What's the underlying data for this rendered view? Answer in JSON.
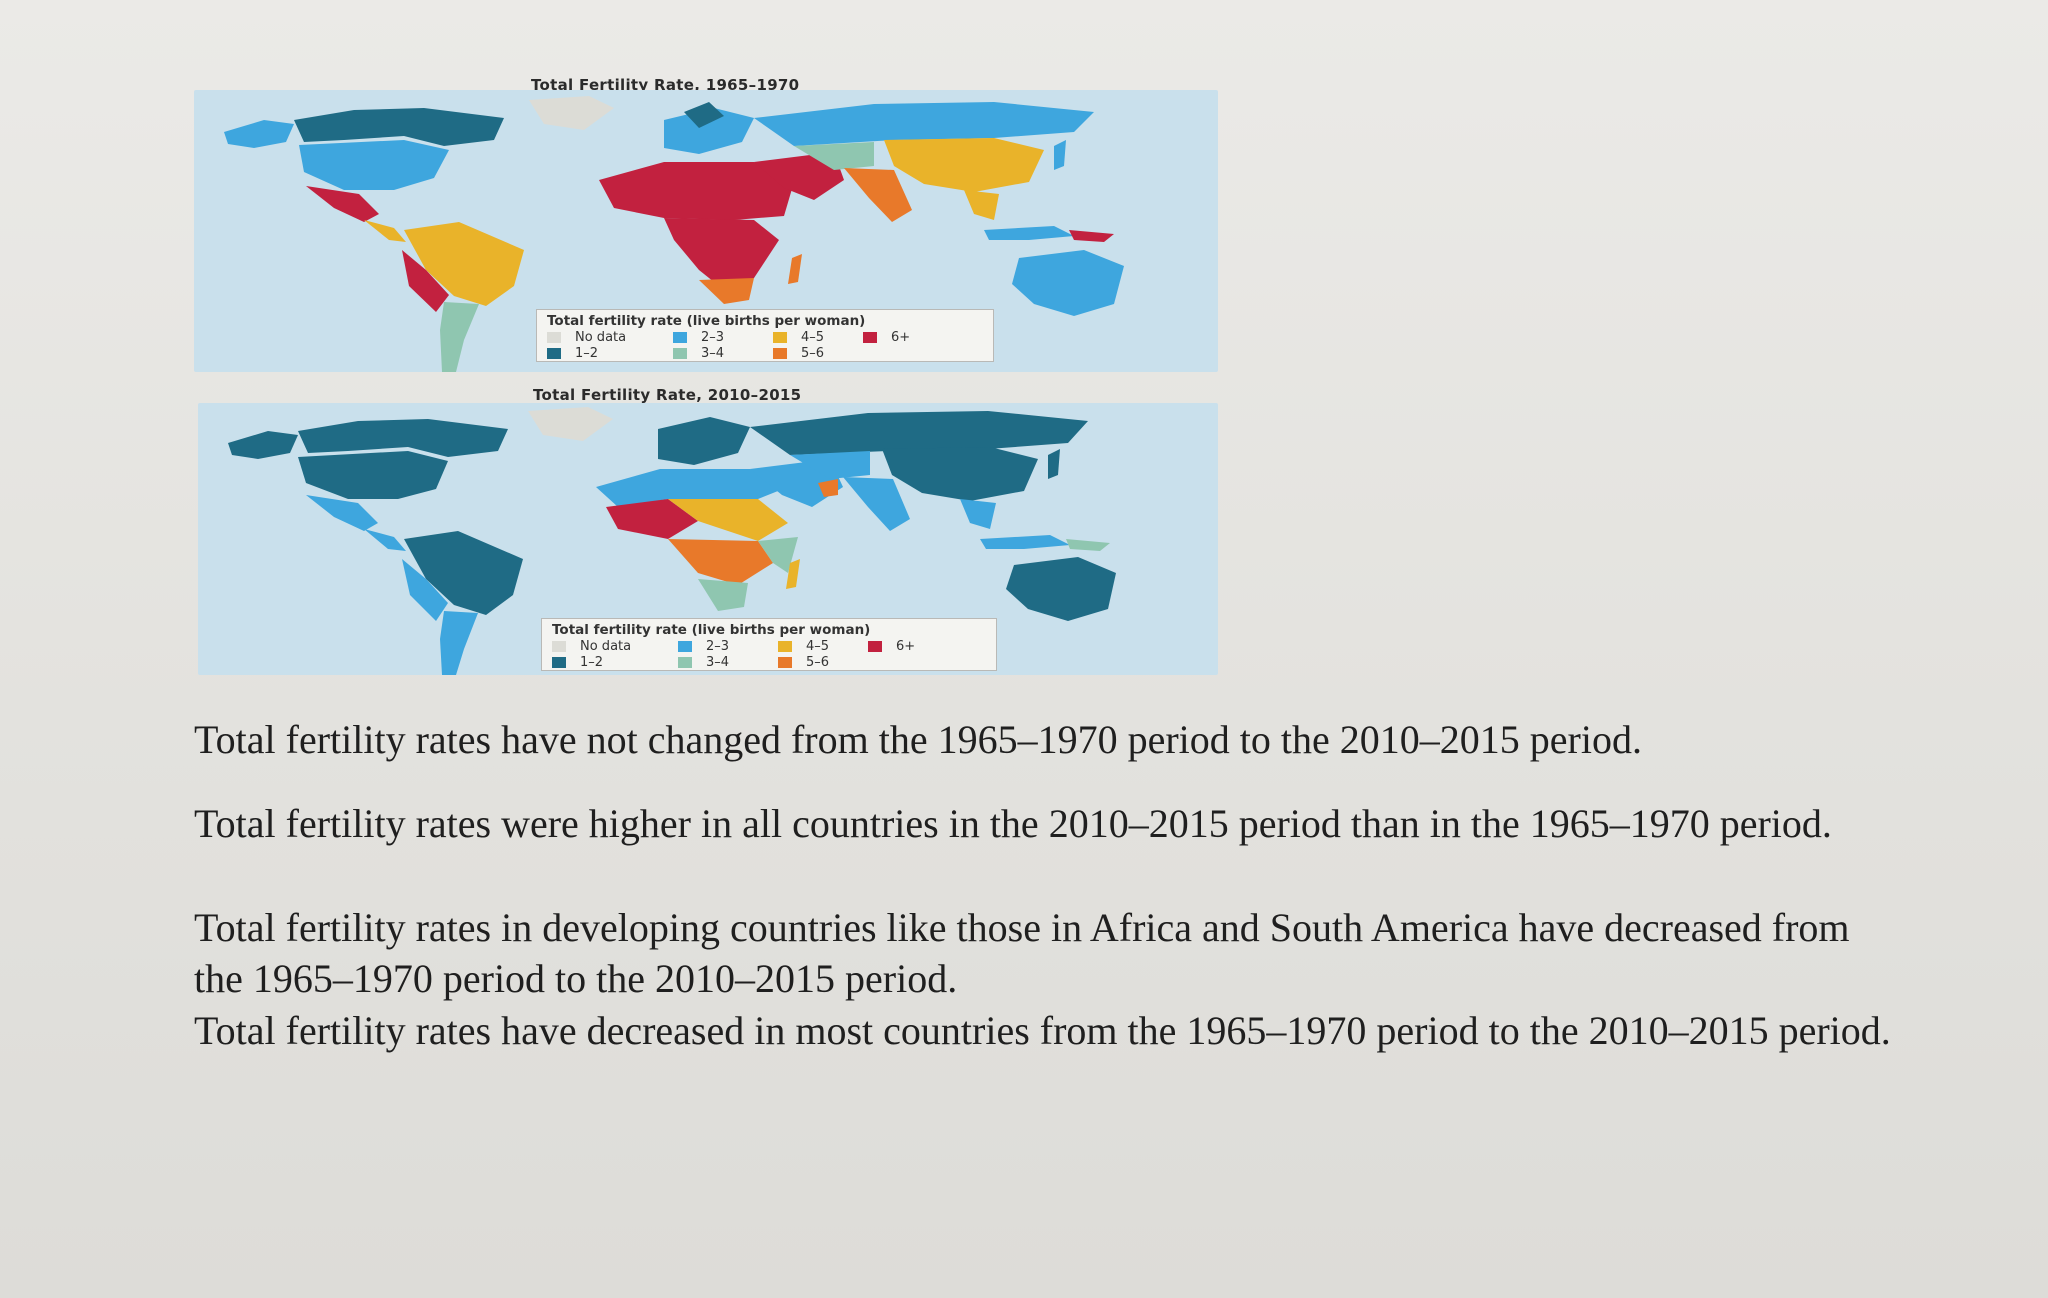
{
  "maps": [
    {
      "title": "Total Fertility Rate, 1965–1970",
      "legend": {
        "title": "Total fertility rate (live births per woman)",
        "items": [
          {
            "label": "No data",
            "color": "#dcdcd6"
          },
          {
            "label": "2–3",
            "color": "#3ea6de"
          },
          {
            "label": "4–5",
            "color": "#e9b32a"
          },
          {
            "label": "6+",
            "color": "#c2213f"
          },
          {
            "label": "1–2",
            "color": "#1f6b85"
          },
          {
            "label": "3–4",
            "color": "#8fc6b0"
          },
          {
            "label": "5–6",
            "color": "#e8792a"
          }
        ]
      }
    },
    {
      "title": "Total Fertility Rate, 2010–2015",
      "legend": {
        "title": "Total fertility rate (live births per woman)",
        "items": [
          {
            "label": "No data",
            "color": "#dcdcd6"
          },
          {
            "label": "2–3",
            "color": "#3ea6de"
          },
          {
            "label": "4–5",
            "color": "#e9b32a"
          },
          {
            "label": "6+",
            "color": "#c2213f"
          },
          {
            "label": "1–2",
            "color": "#1f6b85"
          },
          {
            "label": "3–4",
            "color": "#8fc6b0"
          },
          {
            "label": "5–6",
            "color": "#e8792a"
          }
        ]
      }
    }
  ],
  "colors": {
    "ocean": "#c9e0ec",
    "no_data": "#dcdcd6",
    "r1_2": "#1f6b85",
    "r2_3": "#3ea6de",
    "r3_4": "#8fc6b0",
    "r4_5": "#e9b32a",
    "r5_6": "#e8792a",
    "r6_plus": "#c2213f"
  },
  "answer_options": [
    "Total fertility rates have not changed from the 1965–1970 period to the 2010–2015 period.",
    "Total fertility rates were higher in all countries in the 2010–2015 period than in the 1965–1970 period.",
    "Total fertility rates in developing countries like those in Africa and South America have decreased from the 1965–1970 period to the 2010–2015 period.",
    "Total fertility rates have decreased in most countries from the 1965–1970 period to the 2010–2015 period."
  ]
}
